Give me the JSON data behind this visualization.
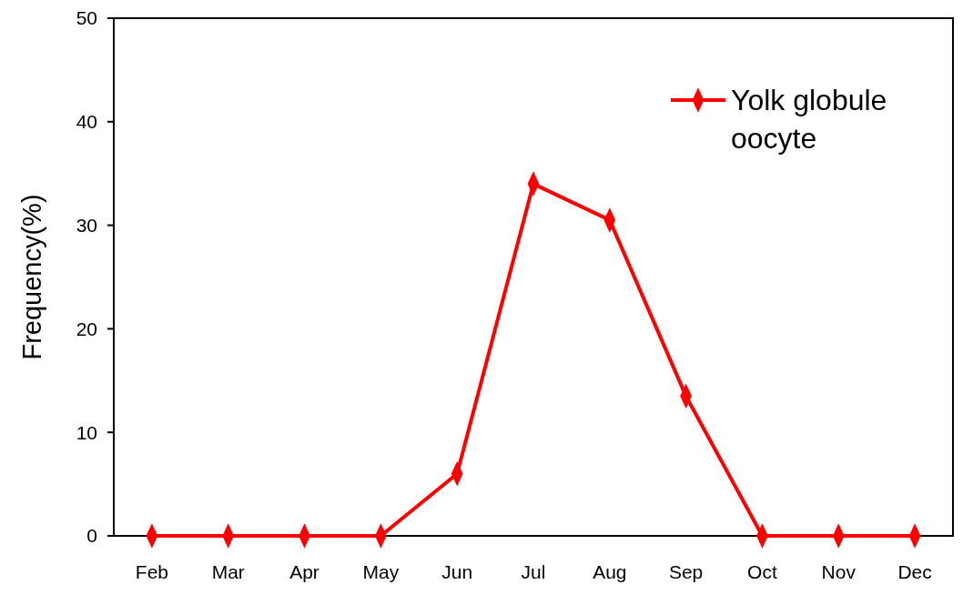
{
  "chart_data": {
    "type": "line",
    "ylabel": "Frequency(%)",
    "categories": [
      "Feb",
      "Mar",
      "Apr",
      "May",
      "Jun",
      "Jul",
      "Aug",
      "Sep",
      "Oct",
      "Nov",
      "Dec"
    ],
    "series": [
      {
        "name": "Yolk globule oocyte",
        "color": "#ff0000",
        "values": [
          0,
          0,
          0,
          0,
          6,
          34,
          30.5,
          13.5,
          0,
          0,
          0
        ]
      }
    ],
    "ylim": [
      0,
      50
    ],
    "yticks": [
      0,
      10,
      20,
      30,
      40,
      50
    ],
    "grid": false,
    "legend": "top right",
    "marker": "diamond",
    "line_style": "solid"
  }
}
